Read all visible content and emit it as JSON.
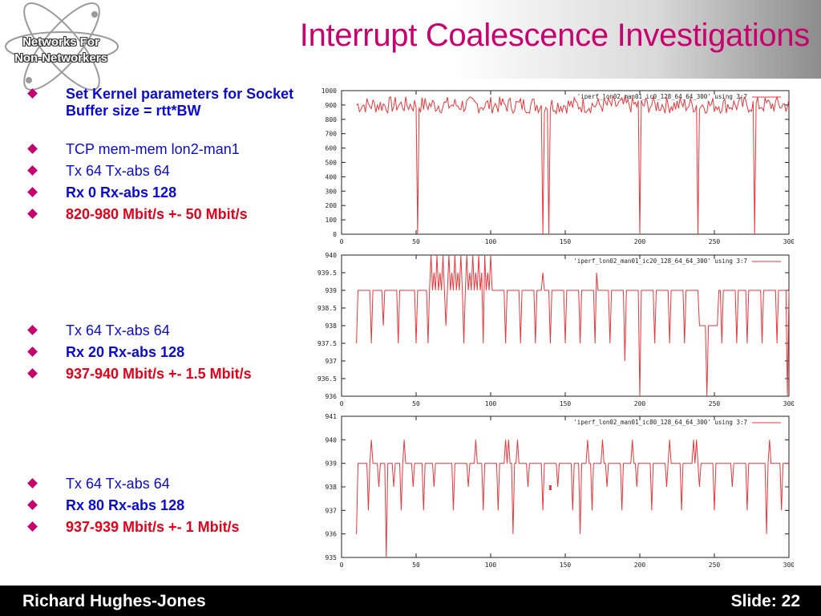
{
  "slide": {
    "title": "Interrupt Coalescence Investigations",
    "logo_line1": "Networks For",
    "logo_line2": "Non-Networkers",
    "footer_name": "Richard Hughes-Jones",
    "footer_slide": "Slide: 22"
  },
  "colors": {
    "title": "#c8006e",
    "bullet_blue": "#0a0ad2",
    "bullet_red": "#e0001b",
    "trace": "#e6373c"
  },
  "bullets_top": [
    {
      "text": "Set Kernel parameters for Socket Buffer size = rtt*BW",
      "style": "blue"
    },
    {
      "text": "TCP mem-mem lon2-man1",
      "style": "plain"
    },
    {
      "text": "Tx 64 Tx-abs 64",
      "style": "plain"
    },
    {
      "text": "Rx 0 Rx-abs 128",
      "style": "blue"
    },
    {
      "text": "820-980 Mbit/s +- 50 Mbit/s",
      "style": "red"
    }
  ],
  "bullets_mid": [
    {
      "text": "Tx 64 Tx-abs 64",
      "style": "plain"
    },
    {
      "text": "Rx 20 Rx-abs 128",
      "style": "blue"
    },
    {
      "text": "937-940 Mbit/s +- 1.5 Mbit/s",
      "style": "red"
    }
  ],
  "bullets_bot": [
    {
      "text": "Tx 64 Tx-abs 64",
      "style": "plain"
    },
    {
      "text": "Rx 80 Rx-abs 128",
      "style": "blue"
    },
    {
      "text": "937-939 Mbit/s +- 1 Mbit/s",
      "style": "red"
    }
  ],
  "chart_data": [
    {
      "type": "line",
      "legend": "'iperf_lon02_man01_ic0_128_64_64_300' using 3:7",
      "xlim": [
        0,
        300
      ],
      "ylim": [
        0,
        1000
      ],
      "xticks": [
        0,
        50,
        100,
        150,
        200,
        250,
        300
      ],
      "yticks": [
        0,
        100,
        200,
        300,
        400,
        500,
        600,
        700,
        800,
        900,
        1000
      ],
      "ytick_labels": [
        "0",
        "100",
        "200",
        "300",
        "400",
        "500",
        "600",
        "700",
        "800",
        "900",
        "1000"
      ],
      "baseline": {
        "from": 820,
        "to": 980,
        "typical": 900
      },
      "dips": [
        [
          51,
          0
        ],
        [
          135,
          0
        ],
        [
          139,
          0
        ],
        [
          200,
          0
        ],
        [
          239,
          0
        ],
        [
          277,
          0
        ]
      ]
    },
    {
      "type": "line",
      "legend": "'iperf_lon02_man01_ic20_128_64_64_300' using 3:7",
      "xlim": [
        0,
        300
      ],
      "ylim": [
        936,
        940
      ],
      "xticks": [
        0,
        50,
        100,
        150,
        200,
        250,
        300
      ],
      "yticks": [
        936,
        936.5,
        937,
        937.5,
        938,
        938.5,
        939,
        939.5,
        940
      ],
      "ytick_labels": [
        "936",
        "936.5",
        "937",
        "937.5",
        "938",
        "938.5",
        "939",
        "939.5",
        "940"
      ],
      "baseline": 939,
      "dips": [
        [
          10,
          937.5
        ],
        [
          20,
          937.5
        ],
        [
          28,
          938
        ],
        [
          38,
          937.5
        ],
        [
          50,
          937.5
        ],
        [
          58,
          937.5
        ],
        [
          70,
          938
        ],
        [
          82,
          937.5
        ],
        [
          95,
          937.5
        ],
        [
          110,
          937.5
        ],
        [
          120,
          937.5
        ],
        [
          130,
          937.5
        ],
        [
          140,
          937.5
        ],
        [
          150,
          937.5
        ],
        [
          160,
          937.5
        ],
        [
          170,
          937.5
        ],
        [
          180,
          937.5
        ],
        [
          190,
          937
        ],
        [
          200,
          936
        ],
        [
          210,
          937.5
        ],
        [
          220,
          937.5
        ],
        [
          230,
          937.5
        ],
        [
          245,
          936
        ],
        [
          255,
          937.5
        ],
        [
          265,
          937.5
        ],
        [
          272,
          937.5
        ],
        [
          282,
          937.5
        ],
        [
          292,
          937.5
        ],
        [
          299,
          936
        ]
      ],
      "peaks": [
        [
          60,
          940
        ],
        [
          62,
          939.5
        ],
        [
          64,
          940
        ],
        [
          66,
          939.5
        ],
        [
          68,
          940
        ],
        [
          70,
          939.5
        ],
        [
          72,
          940
        ],
        [
          74,
          939.5
        ],
        [
          76,
          940
        ],
        [
          78,
          939.5
        ],
        [
          80,
          940
        ],
        [
          82,
          939.5
        ],
        [
          84,
          940
        ],
        [
          86,
          939.5
        ],
        [
          88,
          940
        ],
        [
          90,
          939.5
        ],
        [
          92,
          940
        ],
        [
          94,
          939.5
        ],
        [
          96,
          940
        ],
        [
          98,
          939.5
        ],
        [
          100,
          940
        ],
        [
          135,
          939.5
        ],
        [
          171,
          939.5
        ]
      ],
      "plateau": [
        [
          240,
          938
        ],
        [
          252,
          938
        ]
      ]
    },
    {
      "type": "line",
      "legend": "'iperf_lon02_man01_ic80_128_64_64_300' using 3:7",
      "xlim": [
        0,
        300
      ],
      "ylim": [
        935,
        941
      ],
      "xticks": [
        0,
        50,
        100,
        150,
        200,
        250,
        300
      ],
      "yticks": [
        935,
        936,
        937,
        938,
        939,
        940,
        941
      ],
      "ytick_labels": [
        "935",
        "936",
        "937",
        "938",
        "939",
        "940",
        "941"
      ],
      "baseline": 939,
      "dips": [
        [
          8,
          938
        ],
        [
          10,
          936
        ],
        [
          18,
          937
        ],
        [
          25,
          938
        ],
        [
          30,
          935
        ],
        [
          35,
          938
        ],
        [
          40,
          937
        ],
        [
          48,
          938
        ],
        [
          55,
          937
        ],
        [
          62,
          938
        ],
        [
          75,
          937
        ],
        [
          85,
          938
        ],
        [
          95,
          937
        ],
        [
          105,
          937
        ],
        [
          115,
          936
        ],
        [
          125,
          938
        ],
        [
          135,
          937
        ],
        [
          145,
          938
        ],
        [
          155,
          937
        ],
        [
          160,
          936
        ],
        [
          168,
          937
        ],
        [
          178,
          938
        ],
        [
          188,
          937
        ],
        [
          198,
          938
        ],
        [
          208,
          937
        ],
        [
          218,
          938
        ],
        [
          228,
          937
        ],
        [
          240,
          938
        ],
        [
          250,
          937
        ],
        [
          262,
          938
        ],
        [
          272,
          937
        ],
        [
          285,
          936
        ],
        [
          295,
          937
        ]
      ],
      "peaks": [
        [
          20,
          940
        ],
        [
          40,
          940
        ],
        [
          42,
          940
        ],
        [
          90,
          940
        ],
        [
          110,
          940
        ],
        [
          112,
          940
        ],
        [
          118,
          940
        ],
        [
          165,
          940
        ],
        [
          175,
          940
        ],
        [
          178,
          940
        ],
        [
          195,
          940
        ],
        [
          220,
          940
        ],
        [
          236,
          940
        ],
        [
          238,
          940
        ],
        [
          287,
          940
        ]
      ],
      "spot": [
        [
          140,
          938
        ]
      ]
    }
  ]
}
